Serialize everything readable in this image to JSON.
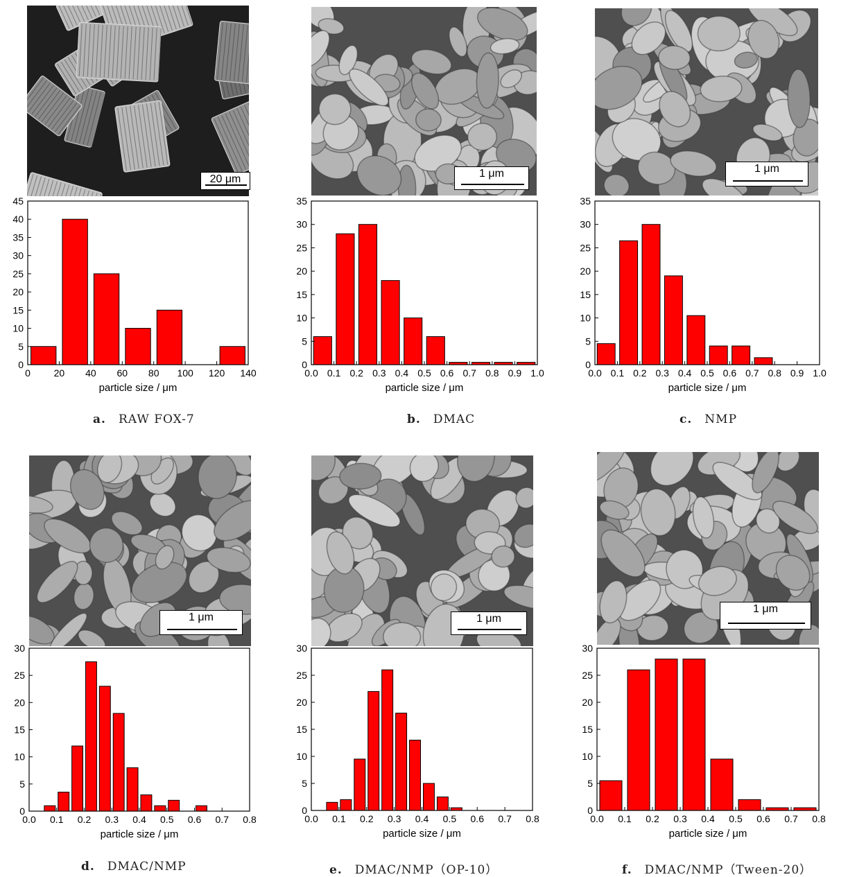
{
  "bar_color": "#ff0000",
  "panels": [
    {
      "letter": "a.",
      "caption": "RAW FOX-7",
      "scale_label": "20 μm",
      "sem_style": "dark-crystals",
      "chart": {
        "type": "bar",
        "xlabel": "particle size / μm",
        "xlim": [
          0,
          140
        ],
        "ylim": [
          0,
          45
        ],
        "xticks": [
          0,
          20,
          40,
          60,
          80,
          100,
          120,
          140
        ],
        "xtick_labels": [
          "0",
          "20",
          "40",
          "60",
          "80",
          "100",
          "120",
          "140"
        ],
        "yticks": [
          0,
          5,
          10,
          15,
          20,
          25,
          30,
          35,
          40,
          45
        ],
        "ytick_labels": [
          "0",
          "5",
          "10",
          "15",
          "20",
          "25",
          "30",
          "35",
          "40",
          "45"
        ],
        "bars": [
          {
            "x0": 2,
            "x1": 18,
            "value": 5
          },
          {
            "x0": 22,
            "x1": 38,
            "value": 40
          },
          {
            "x0": 42,
            "x1": 58,
            "value": 25
          },
          {
            "x0": 62,
            "x1": 78,
            "value": 10
          },
          {
            "x0": 82,
            "x1": 98,
            "value": 15
          },
          {
            "x0": 122,
            "x1": 138,
            "value": 5
          }
        ]
      }
    },
    {
      "letter": "b.",
      "caption": "DMAC",
      "scale_label": "1 μm",
      "sem_style": "light-grains",
      "chart": {
        "type": "bar",
        "xlabel": "particle size / μm",
        "xlim": [
          0,
          1.0
        ],
        "ylim": [
          0,
          35
        ],
        "xticks": [
          0,
          0.1,
          0.2,
          0.3,
          0.4,
          0.5,
          0.6,
          0.7,
          0.8,
          0.9,
          1.0
        ],
        "xtick_labels": [
          "0.0",
          "0.1",
          "0.2",
          "0.3",
          "0.4",
          "0.5",
          "0.6",
          "0.7",
          "0.8",
          "0.9",
          "1.0"
        ],
        "yticks": [
          0,
          5,
          10,
          15,
          20,
          25,
          30,
          35
        ],
        "ytick_labels": [
          "0",
          "5",
          "10",
          "15",
          "20",
          "25",
          "30",
          "35"
        ],
        "bars": [
          {
            "x0": 0.01,
            "x1": 0.09,
            "value": 6
          },
          {
            "x0": 0.11,
            "x1": 0.19,
            "value": 28
          },
          {
            "x0": 0.21,
            "x1": 0.29,
            "value": 30
          },
          {
            "x0": 0.31,
            "x1": 0.39,
            "value": 18
          },
          {
            "x0": 0.41,
            "x1": 0.49,
            "value": 10
          },
          {
            "x0": 0.51,
            "x1": 0.59,
            "value": 6
          },
          {
            "x0": 0.61,
            "x1": 0.69,
            "value": 0.5
          },
          {
            "x0": 0.71,
            "x1": 0.79,
            "value": 0.5
          },
          {
            "x0": 0.81,
            "x1": 0.89,
            "value": 0.5
          },
          {
            "x0": 0.91,
            "x1": 0.99,
            "value": 0.5
          }
        ]
      }
    },
    {
      "letter": "c.",
      "caption": "NMP",
      "scale_label": "1 μm",
      "sem_style": "light-grains",
      "chart": {
        "type": "bar",
        "xlabel": "particle size / μm",
        "xlim": [
          0,
          1.0
        ],
        "ylim": [
          0,
          35
        ],
        "xticks": [
          0,
          0.1,
          0.2,
          0.3,
          0.4,
          0.5,
          0.6,
          0.7,
          0.8,
          0.9,
          1.0
        ],
        "xtick_labels": [
          "0.0",
          "0.1",
          "0.2",
          "0.3",
          "0.4",
          "0.5",
          "0.6",
          "0.7",
          "0.8",
          "0.9",
          "1.0"
        ],
        "yticks": [
          0,
          5,
          10,
          15,
          20,
          25,
          30,
          35
        ],
        "ytick_labels": [
          "0",
          "5",
          "10",
          "15",
          "20",
          "25",
          "30",
          "35"
        ],
        "bars": [
          {
            "x0": 0.01,
            "x1": 0.09,
            "value": 4.5
          },
          {
            "x0": 0.11,
            "x1": 0.19,
            "value": 26.5
          },
          {
            "x0": 0.21,
            "x1": 0.29,
            "value": 30
          },
          {
            "x0": 0.31,
            "x1": 0.39,
            "value": 19
          },
          {
            "x0": 0.41,
            "x1": 0.49,
            "value": 10.5
          },
          {
            "x0": 0.51,
            "x1": 0.59,
            "value": 4
          },
          {
            "x0": 0.61,
            "x1": 0.69,
            "value": 4
          },
          {
            "x0": 0.71,
            "x1": 0.79,
            "value": 1.5
          }
        ]
      }
    },
    {
      "letter": "d.",
      "caption": "DMAC/NMP",
      "scale_label": "1 μm",
      "sem_style": "light-grains",
      "chart": {
        "type": "bar",
        "xlabel": "particle size / μm",
        "xlim": [
          0,
          0.8
        ],
        "ylim": [
          0,
          30
        ],
        "xticks": [
          0,
          0.1,
          0.2,
          0.3,
          0.4,
          0.5,
          0.6,
          0.7,
          0.8
        ],
        "xtick_labels": [
          "0.0",
          "0.1",
          "0.2",
          "0.3",
          "0.4",
          "0.5",
          "0.6",
          "0.7",
          "0.8"
        ],
        "yticks": [
          0,
          5,
          10,
          15,
          20,
          25,
          30
        ],
        "ytick_labels": [
          "0",
          "5",
          "10",
          "15",
          "20",
          "25",
          "30"
        ],
        "bars": [
          {
            "x0": 0.055,
            "x1": 0.095,
            "value": 1
          },
          {
            "x0": 0.105,
            "x1": 0.145,
            "value": 3.5
          },
          {
            "x0": 0.155,
            "x1": 0.195,
            "value": 12
          },
          {
            "x0": 0.205,
            "x1": 0.245,
            "value": 27.5
          },
          {
            "x0": 0.255,
            "x1": 0.295,
            "value": 23
          },
          {
            "x0": 0.305,
            "x1": 0.345,
            "value": 18
          },
          {
            "x0": 0.355,
            "x1": 0.395,
            "value": 8
          },
          {
            "x0": 0.405,
            "x1": 0.445,
            "value": 3
          },
          {
            "x0": 0.455,
            "x1": 0.495,
            "value": 1
          },
          {
            "x0": 0.505,
            "x1": 0.545,
            "value": 2
          },
          {
            "x0": 0.605,
            "x1": 0.645,
            "value": 1
          }
        ]
      }
    },
    {
      "letter": "e.",
      "caption": "DMAC/NMP（OP-10）",
      "scale_label": "1 μm",
      "sem_style": "light-grains",
      "chart": {
        "type": "bar",
        "xlabel": "particle size / μm",
        "xlim": [
          0,
          0.8
        ],
        "ylim": [
          0,
          30
        ],
        "xticks": [
          0,
          0.1,
          0.2,
          0.3,
          0.4,
          0.5,
          0.6,
          0.7,
          0.8
        ],
        "xtick_labels": [
          "0.0",
          "0.1",
          "0.2",
          "0.3",
          "0.4",
          "0.5",
          "0.6",
          "0.7",
          "0.8"
        ],
        "yticks": [
          0,
          5,
          10,
          15,
          20,
          25,
          30
        ],
        "ytick_labels": [
          "0",
          "5",
          "10",
          "15",
          "20",
          "25",
          "30"
        ],
        "bars": [
          {
            "x0": 0.055,
            "x1": 0.095,
            "value": 1.5
          },
          {
            "x0": 0.105,
            "x1": 0.145,
            "value": 2
          },
          {
            "x0": 0.155,
            "x1": 0.195,
            "value": 9.5
          },
          {
            "x0": 0.205,
            "x1": 0.245,
            "value": 22
          },
          {
            "x0": 0.255,
            "x1": 0.295,
            "value": 26
          },
          {
            "x0": 0.305,
            "x1": 0.345,
            "value": 18
          },
          {
            "x0": 0.355,
            "x1": 0.395,
            "value": 13
          },
          {
            "x0": 0.405,
            "x1": 0.445,
            "value": 5
          },
          {
            "x0": 0.455,
            "x1": 0.495,
            "value": 2.5
          },
          {
            "x0": 0.505,
            "x1": 0.545,
            "value": 0.5
          }
        ]
      }
    },
    {
      "letter": "f.",
      "caption": "DMAC/NMP（Tween-20）",
      "scale_label": "1 μm",
      "sem_style": "light-grains",
      "chart": {
        "type": "bar",
        "xlabel": "particle size / μm",
        "xlim": [
          0,
          0.8
        ],
        "ylim": [
          0,
          30
        ],
        "xticks": [
          0,
          0.1,
          0.2,
          0.3,
          0.4,
          0.5,
          0.6,
          0.7,
          0.8
        ],
        "xtick_labels": [
          "0.0",
          "0.1",
          "0.2",
          "0.3",
          "0.4",
          "0.5",
          "0.6",
          "0.7",
          "0.8"
        ],
        "yticks": [
          0,
          5,
          10,
          15,
          20,
          25,
          30
        ],
        "ytick_labels": [
          "0",
          "5",
          "10",
          "15",
          "20",
          "25",
          "30"
        ],
        "bars": [
          {
            "x0": 0.01,
            "x1": 0.09,
            "value": 5.5
          },
          {
            "x0": 0.11,
            "x1": 0.19,
            "value": 26
          },
          {
            "x0": 0.21,
            "x1": 0.29,
            "value": 28
          },
          {
            "x0": 0.31,
            "x1": 0.39,
            "value": 28
          },
          {
            "x0": 0.41,
            "x1": 0.49,
            "value": 9.5
          },
          {
            "x0": 0.51,
            "x1": 0.59,
            "value": 2
          },
          {
            "x0": 0.61,
            "x1": 0.69,
            "value": 0.5
          },
          {
            "x0": 0.71,
            "x1": 0.79,
            "value": 0.5
          }
        ]
      }
    }
  ]
}
